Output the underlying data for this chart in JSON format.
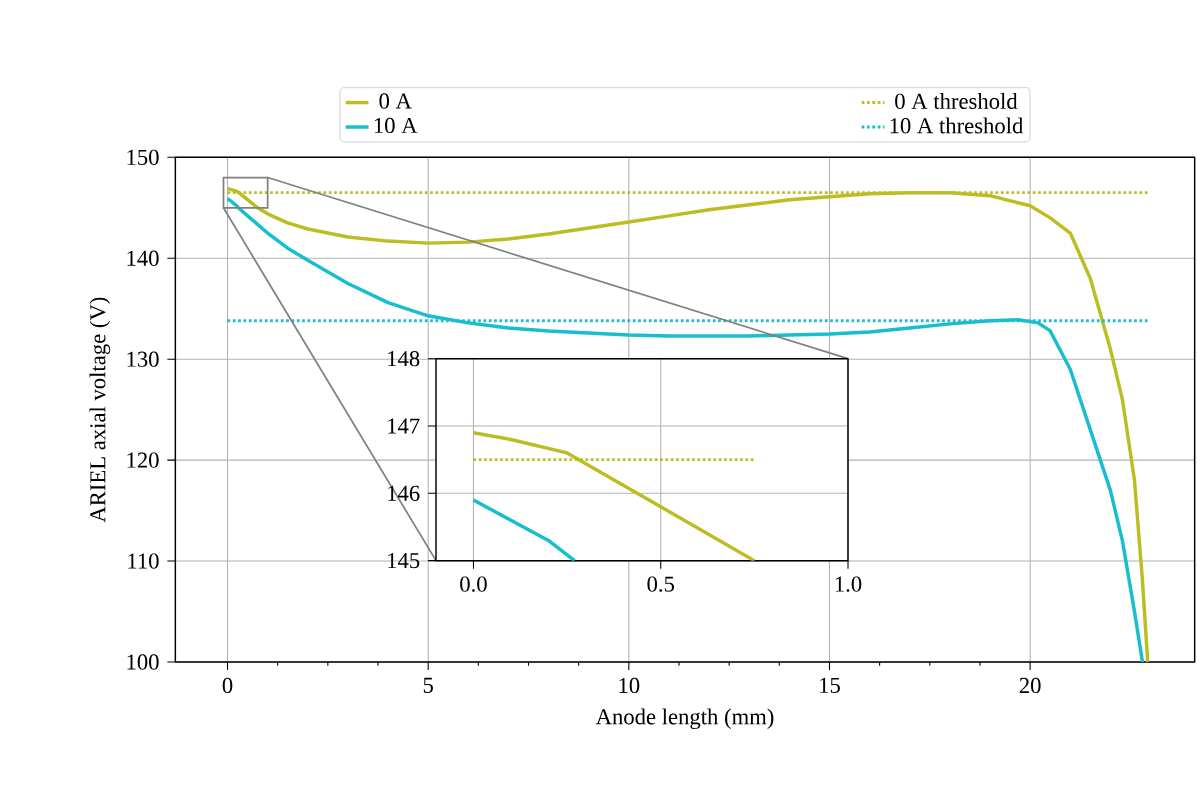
{
  "chart_data": [
    {
      "type": "line",
      "xlabel": "Anode length (mm)",
      "ylabel": "ARIEL axial voltage (V)",
      "xlim": [
        -1.3,
        24.1
      ],
      "ylim": [
        100,
        150
      ],
      "xticks": [
        0,
        5,
        10,
        15,
        20
      ],
      "yticks": [
        100,
        110,
        120,
        130,
        140,
        150
      ],
      "grid": true,
      "legend": "top",
      "line_style": "solid",
      "marker": "none",
      "series": [
        {
          "name": "0 A",
          "color": "#bcbd22",
          "x": [
            0,
            0.1,
            0.25,
            0.5,
            0.75,
            1,
            1.5,
            2,
            3,
            4,
            5,
            6,
            7,
            8,
            9,
            10,
            11,
            12,
            13,
            14,
            15,
            16,
            17,
            17.5,
            18,
            19,
            20,
            20.5,
            21,
            21.5,
            22,
            22.3,
            22.6,
            22.8,
            22.93
          ],
          "values": [
            146.9,
            146.8,
            146.6,
            145.8,
            145.0,
            144.4,
            143.5,
            142.9,
            142.1,
            141.7,
            141.5,
            141.6,
            141.9,
            142.4,
            143.0,
            143.6,
            144.2,
            144.8,
            145.3,
            145.8,
            146.1,
            146.4,
            146.5,
            146.5,
            146.5,
            146.2,
            145.2,
            144.0,
            142.5,
            138.0,
            131.0,
            126.0,
            118.0,
            108.0,
            100.0
          ]
        },
        {
          "name": "10 A",
          "color": "#17becf",
          "x": [
            0,
            0.1,
            0.2,
            0.27,
            0.5,
            1,
            1.5,
            2,
            3,
            4,
            5,
            6,
            7,
            8,
            9,
            10,
            11,
            12,
            13,
            14,
            15,
            16,
            17,
            18,
            19,
            19.7,
            20.2,
            20.5,
            21,
            21.5,
            22,
            22.3,
            22.6,
            22.8
          ],
          "values": [
            145.9,
            145.6,
            145.3,
            145.0,
            144.2,
            142.5,
            141.0,
            139.8,
            137.5,
            135.6,
            134.3,
            133.6,
            133.1,
            132.8,
            132.6,
            132.4,
            132.3,
            132.3,
            132.3,
            132.4,
            132.5,
            132.7,
            133.1,
            133.5,
            133.8,
            133.9,
            133.6,
            132.8,
            129.0,
            123.0,
            117.0,
            112.0,
            105.0,
            100.0
          ]
        }
      ],
      "ref_lines": [
        {
          "axis": "y",
          "value": 146.5,
          "label": "0 A threshold",
          "color": "#bcbd22",
          "line_style": "dotted"
        },
        {
          "axis": "y",
          "value": 133.8,
          "label": "10 A threshold",
          "color": "#17becf",
          "line_style": "dotted"
        }
      ]
    },
    {
      "type": "line",
      "xlim": [
        -0.1,
        1.0
      ],
      "ylim": [
        145,
        148
      ],
      "xticks": [
        {
          "value": 0,
          "label": "0.0"
        },
        {
          "value": 0.5,
          "label": "0.5"
        },
        {
          "value": 1.0,
          "label": "1.0"
        }
      ],
      "yticks": [
        145,
        146,
        147,
        148
      ],
      "grid": true,
      "line_style": "solid",
      "marker": "none",
      "series": [
        {
          "color": "#bcbd22",
          "x": [
            0,
            0.1,
            0.25,
            0.5,
            0.75
          ],
          "values": [
            146.9,
            146.8,
            146.6,
            145.8,
            145.0
          ]
        },
        {
          "color": "#17becf",
          "x": [
            0,
            0.1,
            0.2,
            0.27
          ],
          "values": [
            145.9,
            145.6,
            145.3,
            145.0
          ]
        }
      ],
      "ref_lines": [
        {
          "axis": "y",
          "value": 146.5,
          "color": "#bcbd22",
          "line_style": "dotted"
        }
      ]
    }
  ]
}
